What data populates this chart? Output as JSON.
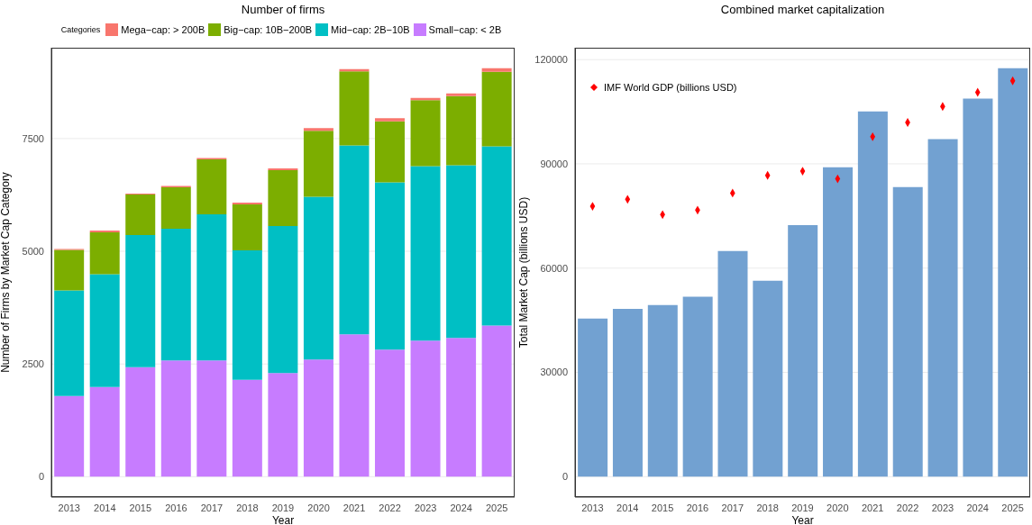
{
  "chart_data": [
    {
      "type": "bar",
      "title": "Number of firms",
      "xlabel": "Year",
      "ylabel": "Number of Firms by Market Cap Category",
      "legend_title": "Categories",
      "categories": [
        "2013",
        "2014",
        "2015",
        "2016",
        "2017",
        "2018",
        "2019",
        "2020",
        "2021",
        "2022",
        "2023",
        "2024",
        "2025"
      ],
      "stacked": true,
      "series": [
        {
          "name": "Small−cap: < 2B",
          "color": "#c77cff",
          "values": [
            1790,
            1990,
            2430,
            2580,
            2580,
            2150,
            2300,
            2600,
            3160,
            2820,
            3020,
            3080,
            3350
          ]
        },
        {
          "name": "Mid−cap: 2B−10B",
          "color": "#00bfc4",
          "values": [
            2340,
            2500,
            2930,
            2920,
            3240,
            2870,
            3260,
            3610,
            4190,
            3710,
            3870,
            3830,
            3980
          ]
        },
        {
          "name": "Big−cap: 10B−200B",
          "color": "#7cae00",
          "values": [
            900,
            930,
            900,
            920,
            1220,
            1020,
            1240,
            1460,
            1640,
            1350,
            1460,
            1530,
            1650
          ]
        },
        {
          "name": "Mega−cap: > 200B",
          "color": "#f8766d",
          "values": [
            20,
            40,
            20,
            30,
            30,
            40,
            40,
            60,
            50,
            70,
            50,
            60,
            80
          ]
        }
      ],
      "ylim": [
        -453,
        9515
      ],
      "yticks": [
        0,
        2500,
        5000,
        7500
      ],
      "grid": "y",
      "legend": "top"
    },
    {
      "type": "bar",
      "title": "Combined market capitalization",
      "xlabel": "Year",
      "ylabel": "Total Market Cap (billions USD)",
      "categories": [
        "2013",
        "2014",
        "2015",
        "2016",
        "2017",
        "2018",
        "2019",
        "2020",
        "2021",
        "2022",
        "2023",
        "2024",
        "2025"
      ],
      "series": [
        {
          "color": "#72a1d1",
          "values": [
            45500,
            48300,
            49400,
            51800,
            64900,
            56400,
            72400,
            89000,
            105100,
            83300,
            97100,
            108800,
            117500
          ]
        },
        {
          "type": "scatter",
          "name": "IMF World GDP (billions USD)",
          "color": "#ff0000",
          "values": [
            77800,
            79800,
            75400,
            76700,
            81600,
            86700,
            87900,
            85700,
            97800,
            101900,
            106500,
            110600,
            113900
          ]
        }
      ],
      "marker": "diamond",
      "ylim": [
        -5877,
        123417
      ],
      "yticks": [
        0,
        30000,
        60000,
        90000,
        120000
      ],
      "grid": "y",
      "legend": "top left"
    }
  ]
}
